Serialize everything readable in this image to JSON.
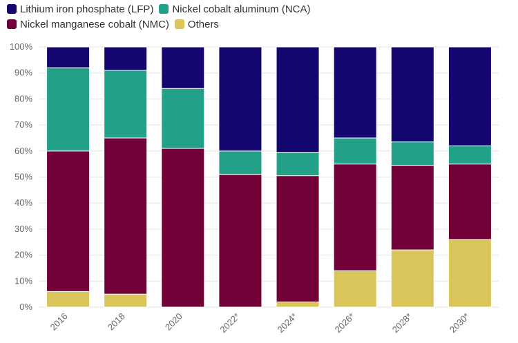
{
  "chart_data": {
    "type": "bar",
    "stacked": true,
    "categories": [
      "2016",
      "2018",
      "2020",
      "2022*",
      "2024*",
      "2026*",
      "2028*",
      "2030*"
    ],
    "series": [
      {
        "name": "Others",
        "color": "#d9c55a",
        "values": [
          6,
          5,
          0,
          0,
          2,
          14,
          22,
          26
        ]
      },
      {
        "name": "Nickel manganese cobalt (NMC)",
        "color": "#700035",
        "values": [
          54,
          60,
          61,
          51,
          48.5,
          41,
          32.5,
          29
        ]
      },
      {
        "name": "Nickel cobalt aluminum (NCA)",
        "color": "#22a088",
        "values": [
          32,
          26,
          23,
          9,
          9,
          10,
          9,
          7
        ]
      },
      {
        "name": "Lithium iron phosphate (LFP)",
        "color": "#13076f",
        "values": [
          8,
          9,
          16,
          40,
          40.5,
          35,
          36.5,
          38
        ]
      }
    ],
    "ylim": [
      0,
      100
    ],
    "yticks": [
      "0%",
      "10%",
      "20%",
      "30%",
      "40%",
      "50%",
      "60%",
      "70%",
      "80%",
      "90%",
      "100%"
    ],
    "legend": [
      [
        "Lithium iron phosphate (LFP)",
        "Nickel cobalt aluminum (NCA)"
      ],
      [
        "Nickel manganese cobalt (NMC)",
        "Others"
      ]
    ],
    "legend_colors": [
      [
        "#13076f",
        "#22a088"
      ],
      [
        "#700035",
        "#d9c55a"
      ]
    ]
  }
}
